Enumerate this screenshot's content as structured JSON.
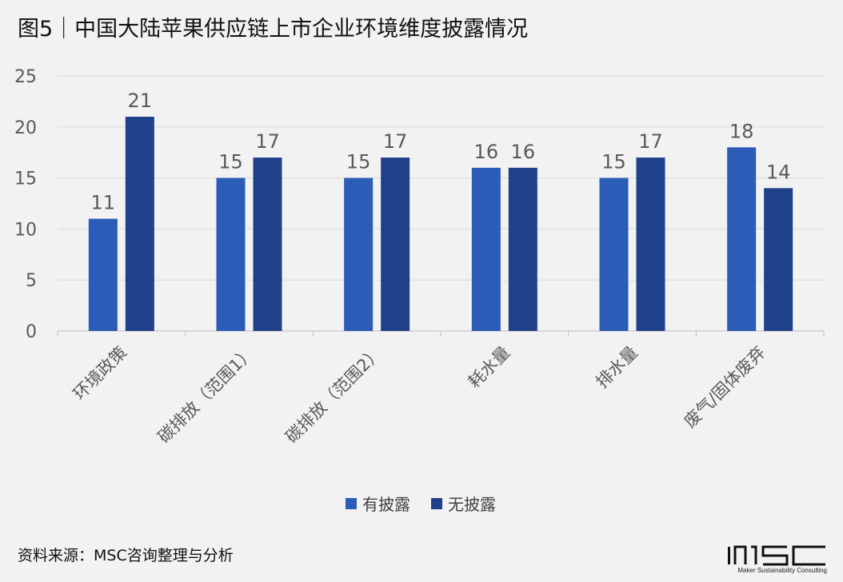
{
  "title": "图5｜中国大陆苹果供应链上市企业环境维度披露情况",
  "source": "资料来源：MSC咨询整理与分析",
  "logo": {
    "mark": "MSC",
    "tagline": "Maker Sustainability Consulting"
  },
  "colors": {
    "background": "#f2f2f2",
    "disclosed": "#2a5cb8",
    "not_disclosed": "#1f4189",
    "grid": "#d9d9d9"
  },
  "chart_data": {
    "type": "bar",
    "title": "图5｜中国大陆苹果供应链上市企业环境维度披露情况",
    "categories": [
      "环境政策",
      "碳排放（范围1）",
      "碳排放（范围2）",
      "耗水量",
      "排水量",
      "废气/固体废弃"
    ],
    "series": [
      {
        "name": "有披露",
        "values": [
          11,
          15,
          15,
          16,
          15,
          18
        ],
        "color": "#2a5cb8"
      },
      {
        "name": "无披露",
        "values": [
          21,
          17,
          17,
          16,
          17,
          14
        ],
        "color": "#1f4189"
      }
    ],
    "ylim": [
      0,
      25
    ],
    "yticks": [
      0,
      5,
      10,
      15,
      20,
      25
    ],
    "xlabel": "",
    "ylabel": "",
    "grid": true,
    "legend_position": "bottom",
    "data_labels": true
  }
}
